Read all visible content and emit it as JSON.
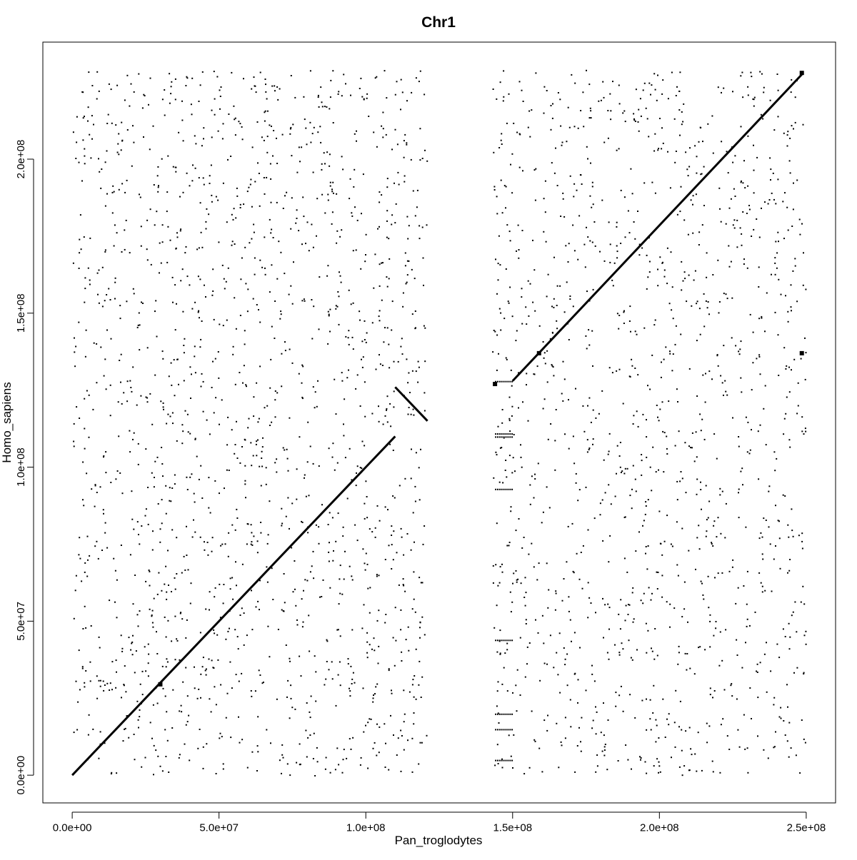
{
  "chart_data": {
    "type": "scatter",
    "title": "Chr1",
    "xlabel": "Pan_troglodytes",
    "ylabel": "Homo_sapiens",
    "xlim": [
      -10000000,
      260000000
    ],
    "ylim": [
      -9000000,
      238000000
    ],
    "x_ticks": [
      0,
      50000000,
      100000000,
      150000000,
      200000000,
      250000000
    ],
    "x_tick_labels": [
      "0.0e+00",
      "5.0e+07",
      "1.0e+08",
      "1.5e+08",
      "2.0e+08",
      "2.5e+08"
    ],
    "y_ticks": [
      0,
      50000000,
      100000000,
      150000000,
      200000000
    ],
    "y_tick_labels": [
      "0.0e+00",
      "5.0e+07",
      "1.0e+08",
      "1.5e+08",
      "2.0e+08"
    ],
    "grid": false,
    "color": "#000000",
    "main_alignments": [
      {
        "x": [
          0,
          110000000
        ],
        "y": [
          0,
          110000000
        ]
      },
      {
        "x": [
          110000000,
          121000000
        ],
        "y": [
          126000000,
          115000000
        ]
      },
      {
        "x": [
          150000000,
          249000000
        ],
        "y": [
          128000000,
          228000000
        ]
      }
    ],
    "marked_points": [
      {
        "x": 30000000,
        "y": 29500000
      },
      {
        "x": 159000000,
        "y": 137000000
      },
      {
        "x": 248500000,
        "y": 228000000
      },
      {
        "x": 248500000,
        "y": 137000000
      },
      {
        "x": 144000000,
        "y": 127000000
      }
    ],
    "background_hits": {
      "x_ranges": [
        [
          0,
          121000000
        ],
        [
          143000000,
          250000000
        ]
      ],
      "y_range": [
        0,
        229000000
      ],
      "description_count": 3000
    }
  }
}
